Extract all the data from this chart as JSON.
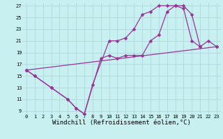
{
  "xlabel": "Windchill (Refroidissement éolien,°C)",
  "bg_color": "#c8f0f0",
  "grid_color": "#b0d8dc",
  "line_color": "#993399",
  "xlim": [
    -0.5,
    23.5
  ],
  "ylim": [
    8.5,
    27.5
  ],
  "xticks": [
    0,
    1,
    2,
    3,
    4,
    5,
    6,
    7,
    8,
    9,
    10,
    11,
    12,
    13,
    14,
    15,
    16,
    17,
    18,
    19,
    20,
    21,
    22,
    23
  ],
  "yticks": [
    9,
    11,
    13,
    15,
    17,
    19,
    21,
    23,
    25,
    27
  ],
  "line1_x": [
    0,
    1,
    3,
    5,
    6,
    7,
    8,
    10,
    11,
    12,
    13,
    14,
    15,
    16,
    17,
    18,
    19,
    20,
    21
  ],
  "line1_y": [
    16,
    15,
    13,
    11,
    9.5,
    8.5,
    13.5,
    21,
    21,
    21.5,
    23,
    25.5,
    26,
    27,
    27,
    27,
    26.5,
    21,
    20
  ],
  "line2_x": [
    0,
    1,
    3,
    5,
    6,
    7,
    9,
    10,
    11,
    12,
    13,
    14,
    15,
    16,
    17,
    18,
    19,
    20,
    21,
    22,
    23
  ],
  "line2_y": [
    16,
    15,
    13,
    11,
    9.5,
    8.5,
    18,
    18.5,
    18,
    18.5,
    18.5,
    18.5,
    21,
    22,
    26,
    27,
    27,
    25.5,
    20,
    21,
    20
  ],
  "line3_x": [
    0,
    23
  ],
  "line3_y": [
    16,
    20
  ],
  "markersize": 2.5,
  "linewidth": 0.9,
  "tick_fontsize": 5.0,
  "label_fontsize": 6.5
}
